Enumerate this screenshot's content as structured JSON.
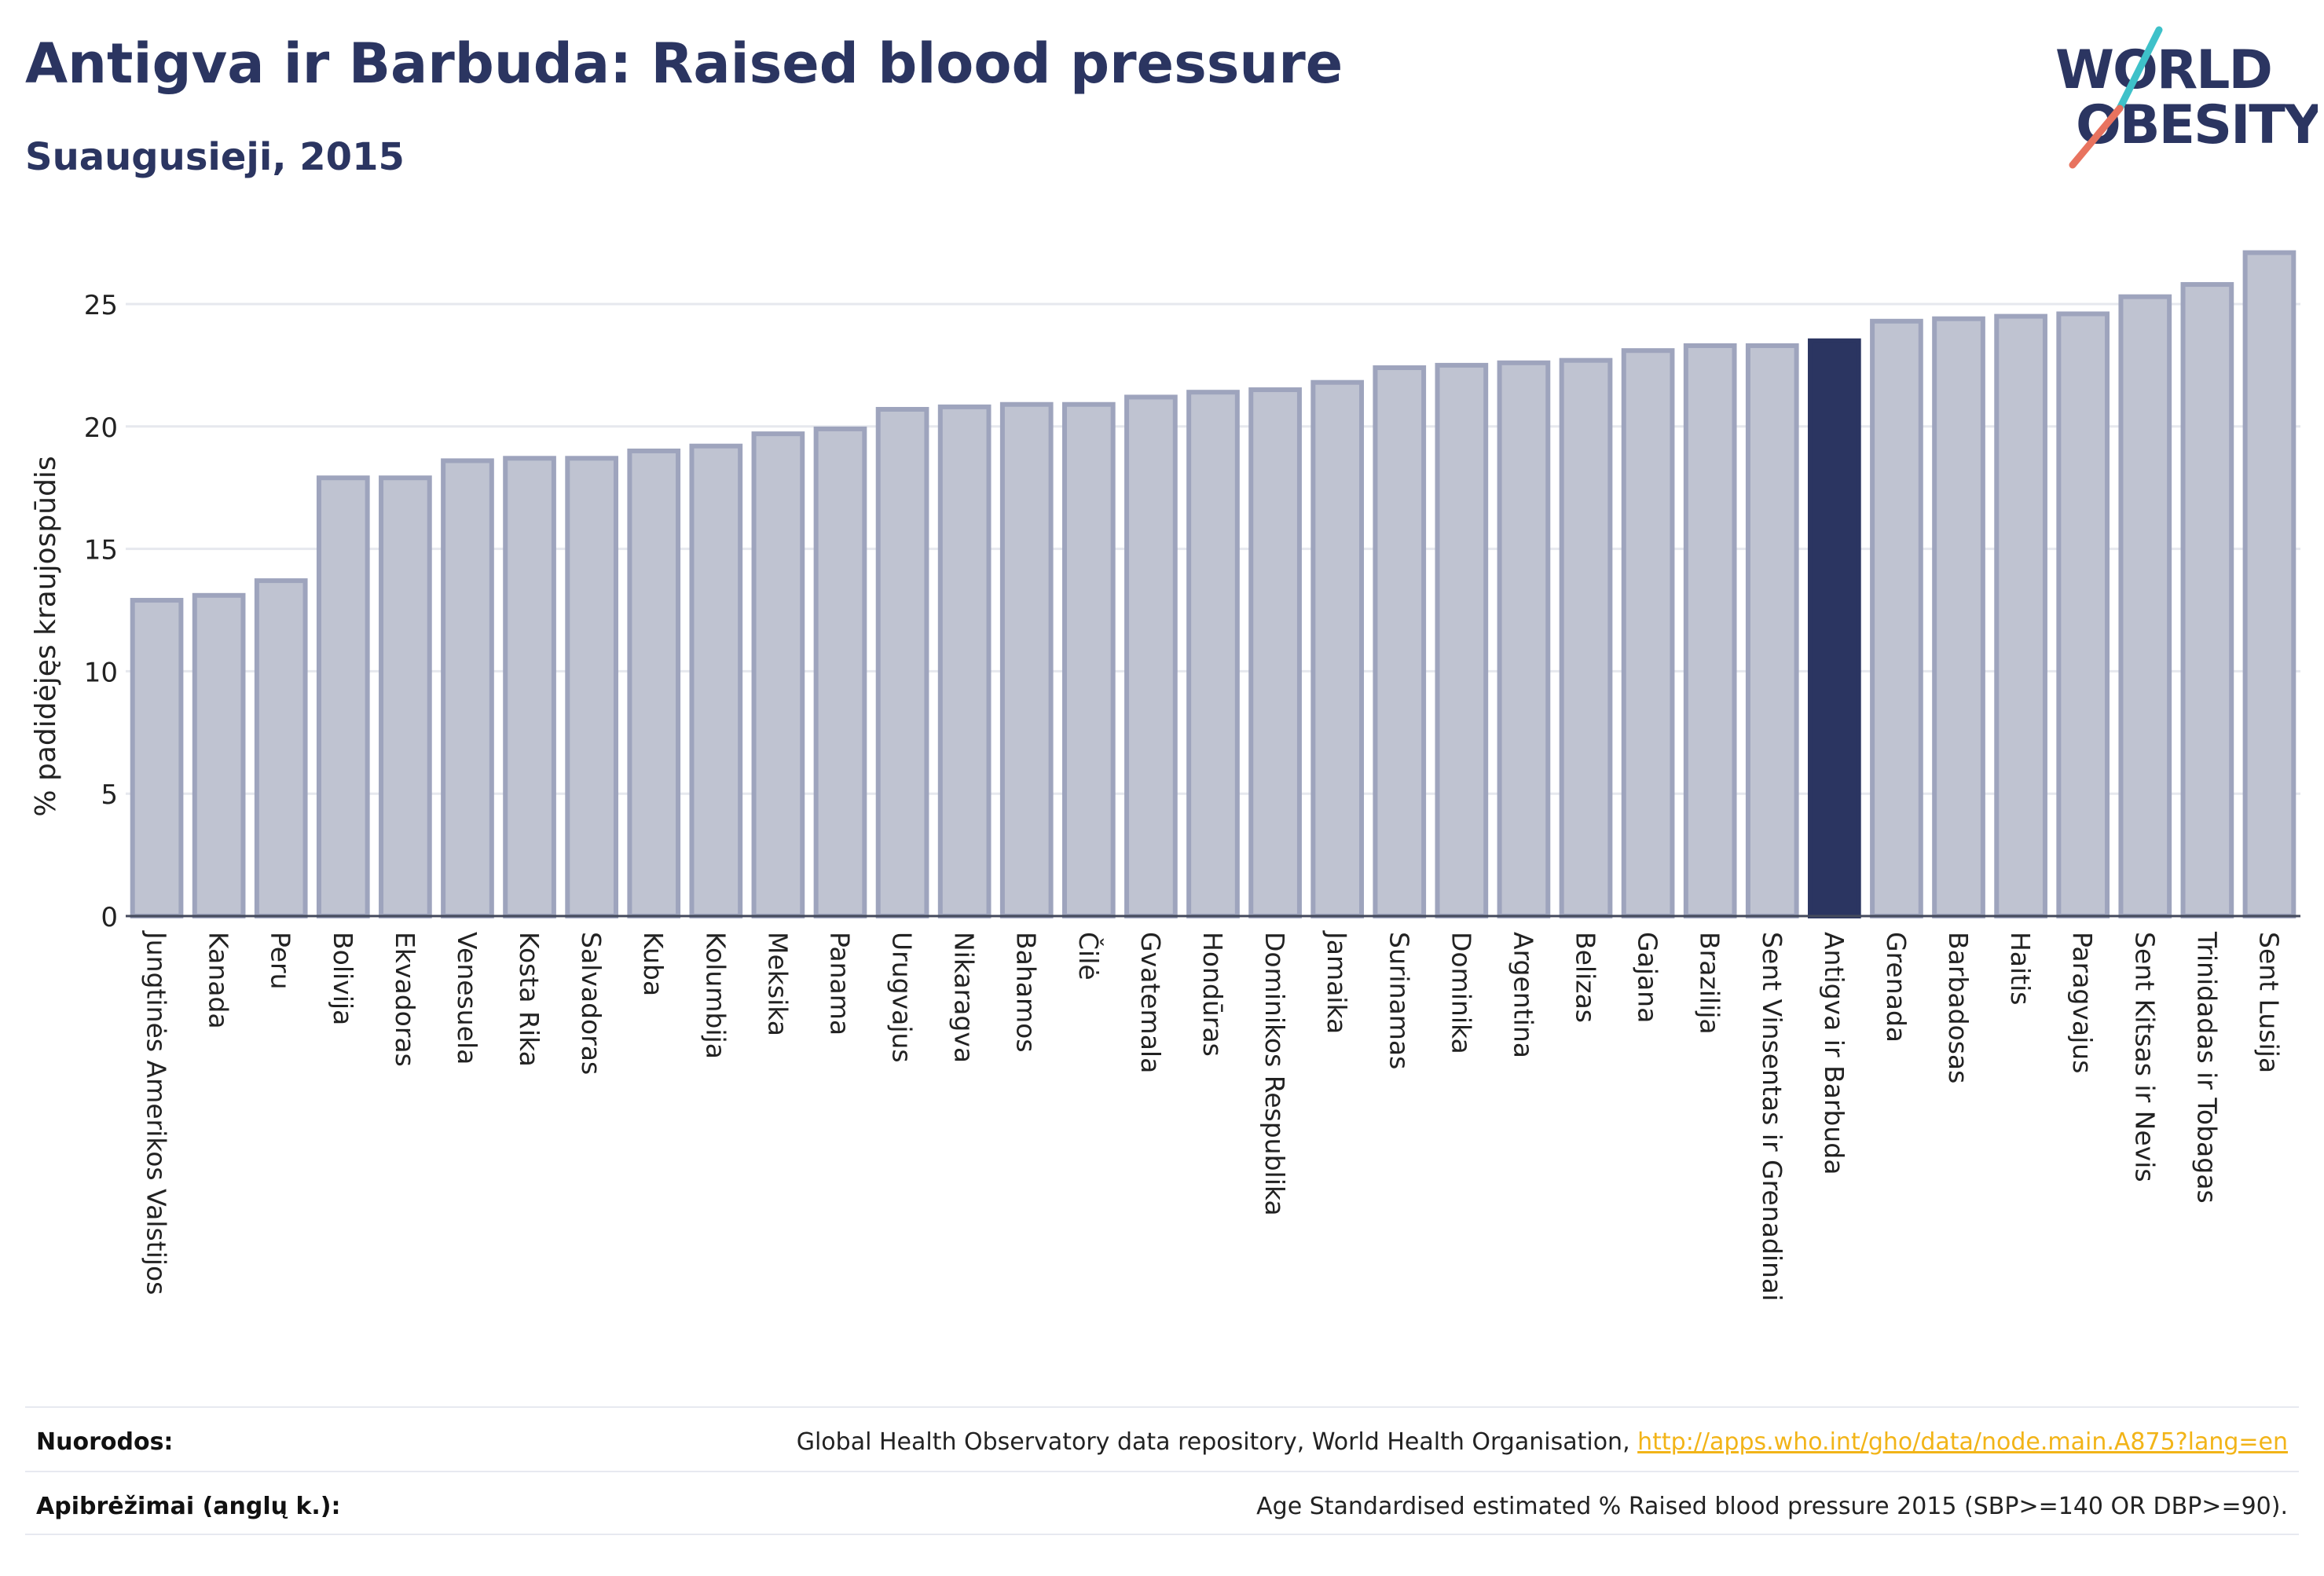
{
  "header": {
    "title": "Antigva ir Barbuda: Raised blood pressure",
    "subtitle": "Suaugusieji, 2015"
  },
  "logo": {
    "line1": "WORLD",
    "line2": "OBESITY",
    "text_color": "#2b3561",
    "accent_teal": "#3ec1c9",
    "accent_coral": "#e8735f"
  },
  "colors": {
    "bar_default": "#bfc3d1",
    "bar_border": "#9ea4bd",
    "bar_highlight": "#2b3561",
    "gridline": "#e6e8ee",
    "axis_text": "#222222"
  },
  "chart_data": {
    "type": "bar",
    "ylabel": "% padidėjęs kraujospūdis",
    "xlabel": "",
    "ylim": [
      0,
      28
    ],
    "yticks": [
      0,
      5,
      10,
      15,
      20,
      25
    ],
    "grid": true,
    "highlight": "Antigva ir Barbuda",
    "categories": [
      "Jungtinės Amerikos Valstijos",
      "Kanada",
      "Peru",
      "Bolivija",
      "Ekvadoras",
      "Venesuela",
      "Kosta Rika",
      "Salvadoras",
      "Kuba",
      "Kolumbija",
      "Meksika",
      "Panama",
      "Urugvajus",
      "Nikaragva",
      "Bahamos",
      "Čilė",
      "Gvatemala",
      "Hondūras",
      "Dominikos Respublika",
      "Jamaika",
      "Surinamas",
      "Dominika",
      "Argentina",
      "Belizas",
      "Gajana",
      "Brazilija",
      "Sent Vinsentas ir Grenadinai",
      "Antigva ir Barbuda",
      "Grenada",
      "Barbadosas",
      "Haitis",
      "Paragvajus",
      "Sent Kitsas ir Nevis",
      "Trinidadas ir Tobagas",
      "Sent Lusija"
    ],
    "values": [
      12.9,
      13.1,
      13.7,
      17.9,
      17.9,
      18.6,
      18.7,
      18.7,
      19.0,
      19.2,
      19.7,
      19.9,
      20.7,
      20.8,
      20.9,
      20.9,
      21.2,
      21.4,
      21.5,
      21.8,
      22.4,
      22.5,
      22.6,
      22.7,
      23.1,
      23.3,
      23.3,
      23.5,
      24.3,
      24.4,
      24.5,
      24.6,
      25.3,
      25.8,
      27.1
    ]
  },
  "footer": {
    "sources_label": "Nuorodos:",
    "sources_text": "Global Health Observatory data repository, World Health Organisation, ",
    "sources_link": "http://apps.who.int/gho/data/node.main.A875?lang=en",
    "definitions_label": "Apibrėžimai (anglų k.):",
    "definitions_text": "Age Standardised estimated % Raised blood pressure 2015 (SBP>=140 OR DBP>=90)."
  }
}
